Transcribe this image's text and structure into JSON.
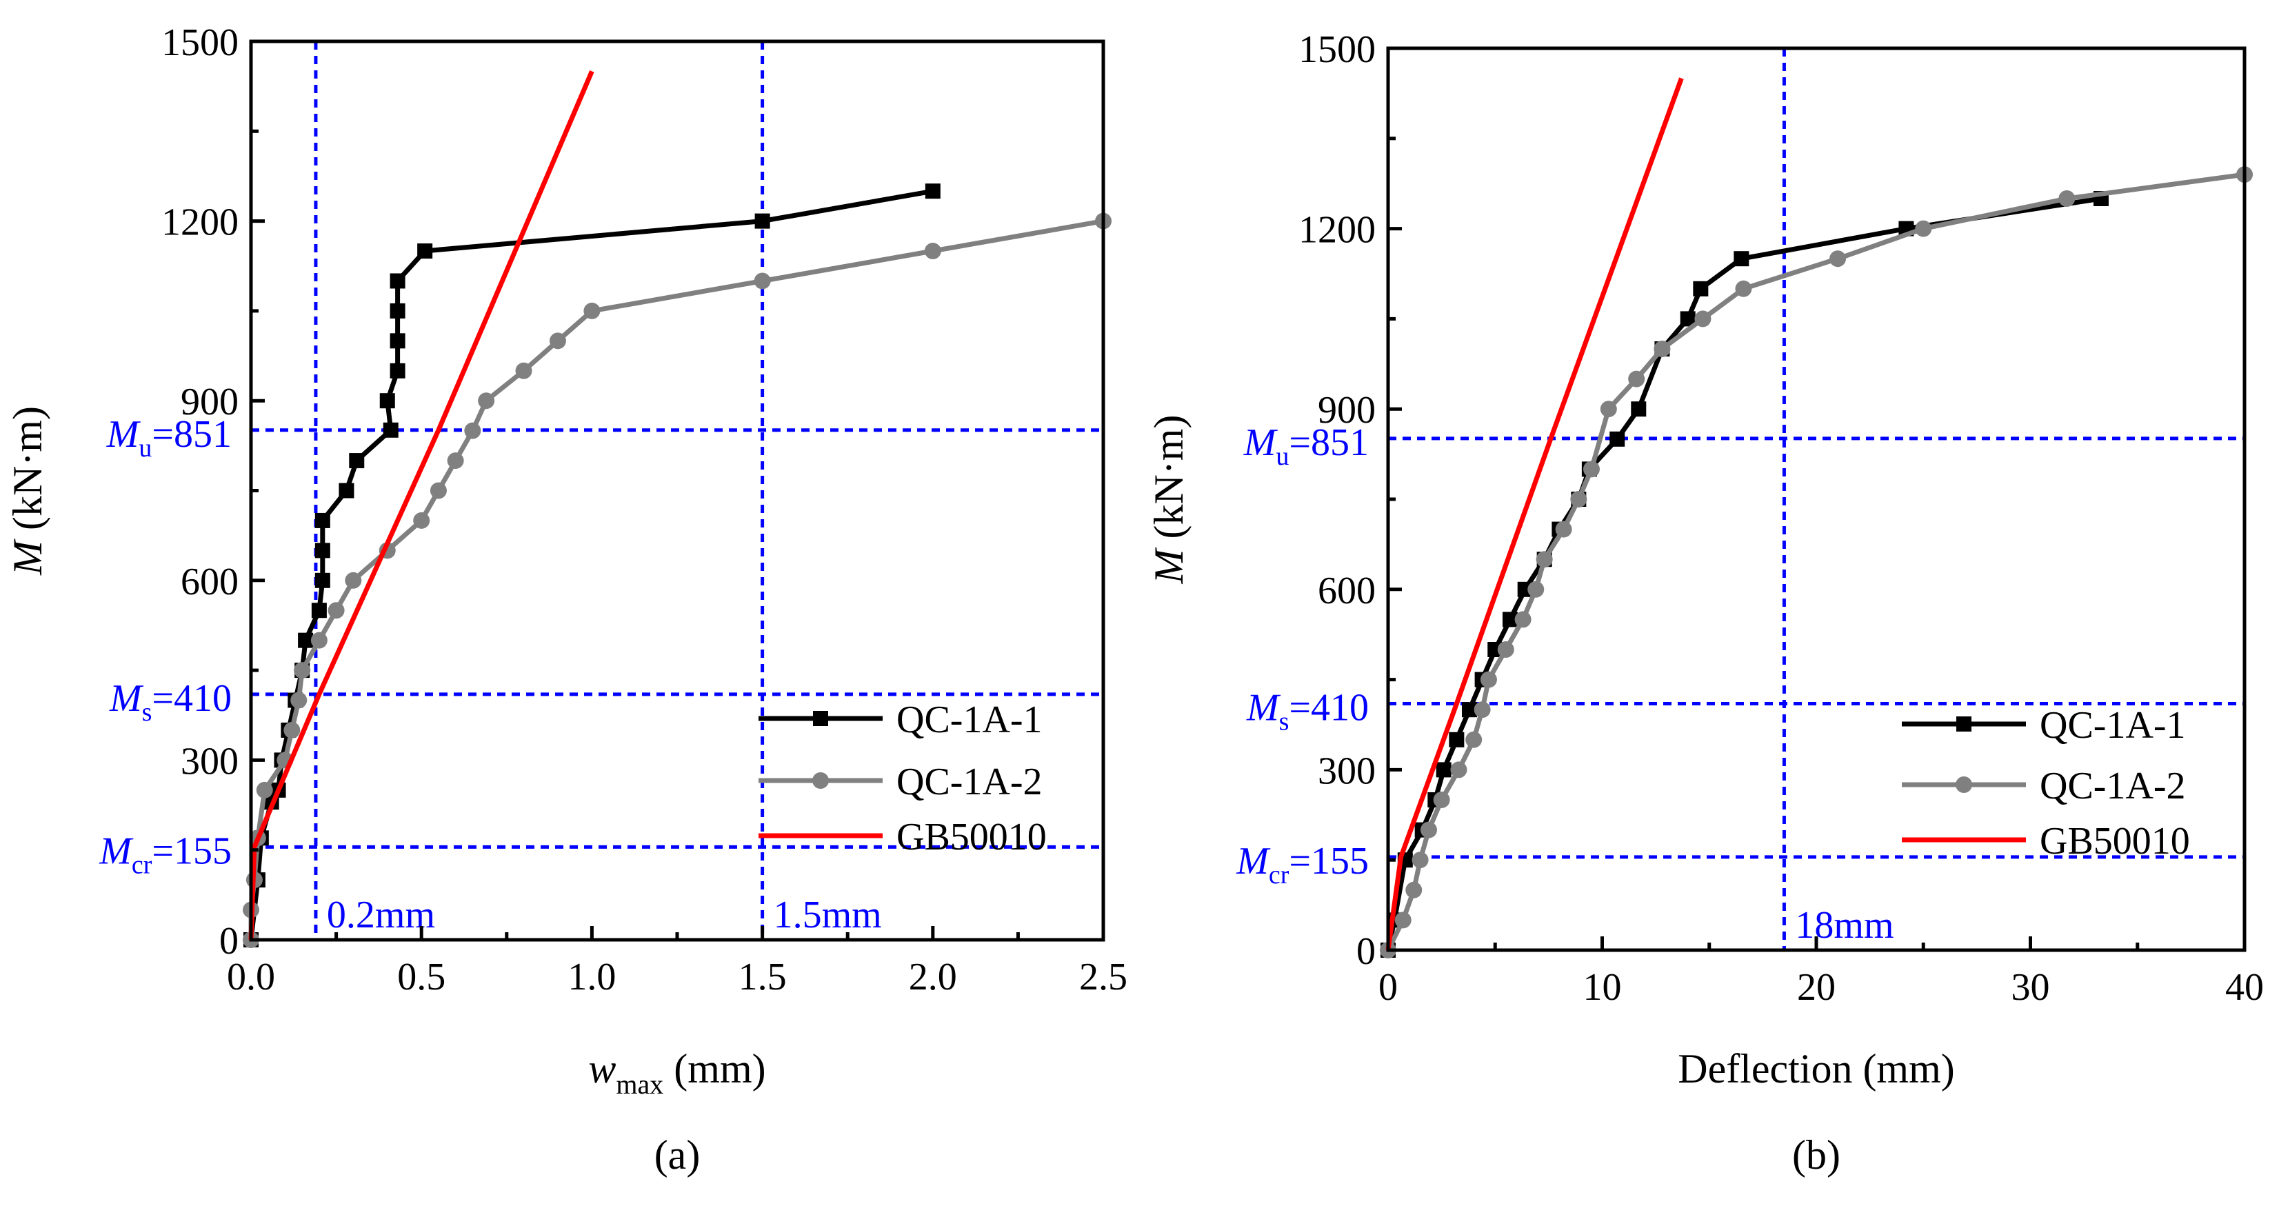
{
  "chart_data": [
    {
      "id": "a",
      "type": "line",
      "caption": "(a)",
      "xlabel": {
        "main": "w",
        "sub": "max",
        "unit": " (mm)"
      },
      "ylabel": {
        "main": "M",
        "unit": " (kN·m)"
      },
      "xlim": [
        0,
        2.5
      ],
      "ylim": [
        0,
        1500
      ],
      "xticks": [
        "0.0",
        "0.5",
        "1.0",
        "1.5",
        "2.0",
        "2.5"
      ],
      "xtick_values": [
        0,
        0.5,
        1.0,
        1.5,
        2.0,
        2.5
      ],
      "yticks": [
        "0",
        "300",
        "600",
        "900",
        "1200",
        "1500"
      ],
      "ytick_values": [
        0,
        300,
        600,
        900,
        1200,
        1500
      ],
      "hlines": [
        {
          "main": "M",
          "sub": "u",
          "rest": "=851",
          "value": 851
        },
        {
          "main": "M",
          "sub": "s",
          "rest": "=410",
          "value": 410
        },
        {
          "main": "M",
          "sub": "cr",
          "rest": "=155",
          "value": 155
        }
      ],
      "vlines": [
        {
          "label": "0.2mm",
          "value": 0.19
        },
        {
          "label": "1.5mm",
          "value": 1.5
        }
      ],
      "series": [
        {
          "name": "QC-1A-1",
          "color": "#000000",
          "marker": "square",
          "points": [
            [
              0.0,
              0
            ],
            [
              0.02,
              100
            ],
            [
              0.03,
              170
            ],
            [
              0.06,
              230
            ],
            [
              0.08,
              250
            ],
            [
              0.09,
              300
            ],
            [
              0.11,
              350
            ],
            [
              0.13,
              400
            ],
            [
              0.15,
              450
            ],
            [
              0.16,
              500
            ],
            [
              0.2,
              550
            ],
            [
              0.21,
              600
            ],
            [
              0.21,
              650
            ],
            [
              0.21,
              700
            ],
            [
              0.28,
              750
            ],
            [
              0.31,
              800
            ],
            [
              0.41,
              851
            ],
            [
              0.4,
              900
            ],
            [
              0.43,
              950
            ],
            [
              0.43,
              1000
            ],
            [
              0.43,
              1050
            ],
            [
              0.43,
              1100
            ],
            [
              0.51,
              1150
            ],
            [
              1.5,
              1200
            ],
            [
              2.0,
              1250
            ]
          ]
        },
        {
          "name": "QC-1A-2",
          "color": "#808080",
          "marker": "circle",
          "points": [
            [
              0.0,
              0
            ],
            [
              0.0,
              50
            ],
            [
              0.01,
              100
            ],
            [
              0.02,
              170
            ],
            [
              0.04,
              250
            ],
            [
              0.1,
              300
            ],
            [
              0.12,
              350
            ],
            [
              0.14,
              400
            ],
            [
              0.15,
              450
            ],
            [
              0.2,
              500
            ],
            [
              0.25,
              550
            ],
            [
              0.3,
              600
            ],
            [
              0.4,
              650
            ],
            [
              0.5,
              700
            ],
            [
              0.55,
              750
            ],
            [
              0.6,
              800
            ],
            [
              0.65,
              850
            ],
            [
              0.69,
              900
            ],
            [
              0.8,
              950
            ],
            [
              0.9,
              1000
            ],
            [
              1.0,
              1050
            ],
            [
              1.5,
              1100
            ],
            [
              2.0,
              1150
            ],
            [
              2.5,
              1200
            ]
          ]
        },
        {
          "name": "GB50010",
          "color": "#ff0000",
          "marker": "none",
          "points": [
            [
              0.0,
              0
            ],
            [
              0.01,
              155
            ],
            [
              0.2,
              410
            ],
            [
              0.55,
              851
            ],
            [
              1.0,
              1450
            ]
          ]
        }
      ],
      "legend": "lower-right"
    },
    {
      "id": "b",
      "type": "line",
      "caption": "(b)",
      "xlabel": {
        "main": "Deflection",
        "sub": "",
        "unit": " (mm)"
      },
      "ylabel": {
        "main": "M",
        "unit": " (kN·m)"
      },
      "xlim": [
        0,
        40
      ],
      "ylim": [
        0,
        1500
      ],
      "xticks": [
        "0",
        "10",
        "20",
        "30",
        "40"
      ],
      "xtick_values": [
        0,
        10,
        20,
        30,
        40
      ],
      "yticks": [
        "0",
        "300",
        "600",
        "900",
        "1200",
        "1500"
      ],
      "ytick_values": [
        0,
        300,
        600,
        900,
        1200,
        1500
      ],
      "hlines": [
        {
          "main": "M",
          "sub": "u",
          "rest": "=851",
          "value": 851
        },
        {
          "main": "M",
          "sub": "s",
          "rest": "=410",
          "value": 410
        },
        {
          "main": "M",
          "sub": "cr",
          "rest": "=155",
          "value": 155
        }
      ],
      "vlines": [
        {
          "label": "18mm",
          "value": 18.5
        }
      ],
      "series": [
        {
          "name": "QC-1A-1",
          "color": "#000000",
          "marker": "square",
          "points": [
            [
              0,
              0
            ],
            [
              0.3,
              50
            ],
            [
              0.8,
              150
            ],
            [
              1.6,
              200
            ],
            [
              2.2,
              250
            ],
            [
              2.6,
              300
            ],
            [
              3.2,
              350
            ],
            [
              3.8,
              400
            ],
            [
              4.4,
              450
            ],
            [
              5.0,
              500
            ],
            [
              5.7,
              550
            ],
            [
              6.4,
              600
            ],
            [
              7.3,
              650
            ],
            [
              8.0,
              700
            ],
            [
              8.9,
              750
            ],
            [
              9.4,
              800
            ],
            [
              10.7,
              850
            ],
            [
              11.7,
              900
            ],
            [
              12.8,
              1000
            ],
            [
              14.0,
              1050
            ],
            [
              14.6,
              1100
            ],
            [
              16.5,
              1150
            ],
            [
              24.2,
              1200
            ],
            [
              33.3,
              1250
            ]
          ]
        },
        {
          "name": "QC-1A-2",
          "color": "#808080",
          "marker": "circle",
          "points": [
            [
              0,
              0
            ],
            [
              0.7,
              50
            ],
            [
              1.2,
              100
            ],
            [
              1.5,
              150
            ],
            [
              1.9,
              200
            ],
            [
              2.5,
              250
            ],
            [
              3.3,
              300
            ],
            [
              4.0,
              350
            ],
            [
              4.4,
              400
            ],
            [
              4.7,
              450
            ],
            [
              5.5,
              500
            ],
            [
              6.3,
              550
            ],
            [
              6.9,
              600
            ],
            [
              7.3,
              650
            ],
            [
              8.2,
              700
            ],
            [
              8.9,
              750
            ],
            [
              9.5,
              800
            ],
            [
              10.3,
              900
            ],
            [
              11.6,
              950
            ],
            [
              12.8,
              1000
            ],
            [
              14.7,
              1050
            ],
            [
              16.6,
              1100
            ],
            [
              21.0,
              1150
            ],
            [
              25.0,
              1200
            ],
            [
              31.7,
              1250
            ],
            [
              40.0,
              1290
            ]
          ]
        },
        {
          "name": "GB50010",
          "color": "#ff0000",
          "marker": "none",
          "points": [
            [
              0,
              0
            ],
            [
              0.6,
              155
            ],
            [
              3.2,
              410
            ],
            [
              7.6,
              851
            ],
            [
              13.7,
              1450
            ]
          ]
        }
      ],
      "legend": "lower-right"
    }
  ]
}
